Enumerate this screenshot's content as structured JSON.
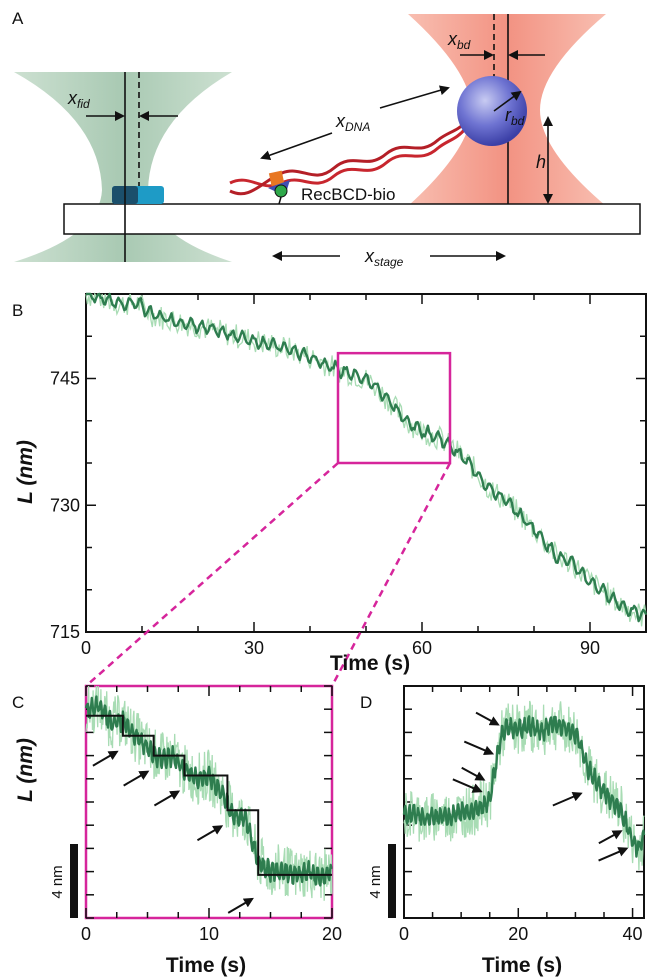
{
  "panel_labels": {
    "a": "A",
    "b": "B",
    "c": "C",
    "d": "D"
  },
  "schematic": {
    "x_fid": "x",
    "x_fid_sub": "fid",
    "x_bd": "x",
    "x_bd_sub": "bd",
    "x_dna": "x",
    "x_dna_sub": "DNA",
    "r_bd": "r",
    "r_bd_sub": "bd",
    "h": "h",
    "recbcd": "RecBCD-bio",
    "x_stage": "x",
    "x_stage_sub": "stage"
  },
  "colors": {
    "trace_light": "#a8dcb4",
    "trace_dark": "#2e7d4f",
    "magenta": "#d6259b",
    "green_beam": "#b6d2c0",
    "red_beam": "#f4a896",
    "bead": "#5a5fc8",
    "dna": "#c8262e"
  },
  "chart_data": [
    {
      "type": "line",
      "panel": "B",
      "xlabel": "Time (s)",
      "ylabel": "L (nm)",
      "xlim": [
        0,
        100
      ],
      "ylim": [
        715,
        755
      ],
      "xticks": [
        0,
        30,
        60,
        90
      ],
      "yticks": [
        715,
        730,
        745
      ],
      "series": [
        {
          "values_x": [
            0,
            3,
            6,
            9,
            12,
            15,
            18,
            21,
            24,
            27,
            30,
            33,
            36,
            39,
            42,
            45,
            48,
            51,
            54,
            57,
            60,
            63,
            66,
            69,
            72,
            75,
            78,
            81,
            84,
            87,
            90,
            93,
            96,
            99
          ],
          "values_y": [
            755,
            754.5,
            753.8,
            754,
            752.5,
            752,
            751.5,
            751,
            750.5,
            750,
            749.5,
            749,
            748.5,
            747.8,
            747,
            746,
            745.5,
            744.5,
            742.5,
            740,
            738.8,
            738,
            736.5,
            734.5,
            732,
            730.5,
            728.5,
            726.5,
            724,
            723,
            721,
            719.5,
            718,
            717
          ]
        }
      ],
      "zoom_box": {
        "x": [
          45,
          65
        ],
        "y": [
          735,
          748
        ]
      }
    },
    {
      "type": "line",
      "panel": "C",
      "xlabel": "Time (s)",
      "ylabel": "L (nm)",
      "xlim": [
        0,
        20
      ],
      "xticks": [
        0,
        10,
        20
      ],
      "scale_bar": "4 nm",
      "series": [
        {
          "values_x": [
            0,
            1,
            2,
            3,
            4,
            5,
            6,
            7,
            8,
            9,
            10,
            11,
            12,
            13,
            14,
            15,
            16,
            17,
            18,
            19,
            20
          ],
          "values_y": [
            20.5,
            20.8,
            19.8,
            19.9,
            19,
            18.3,
            17.6,
            17.8,
            16.9,
            16.4,
            16.6,
            15.6,
            14.2,
            14.0,
            11.4,
            10.8,
            10.9,
            10.6,
            10.8,
            10.5,
            10.7
          ]
        }
      ],
      "steps": {
        "x": [
          0,
          3,
          5.5,
          8,
          11.5,
          14,
          20
        ],
        "y": [
          20.2,
          19.0,
          17.8,
          16.6,
          14.5,
          10.6,
          10.6
        ]
      },
      "arrows_count": 5
    },
    {
      "type": "line",
      "panel": "D",
      "xlabel": "Time (s)",
      "xlim": [
        0,
        42
      ],
      "xticks": [
        0,
        20,
        40
      ],
      "scale_bar": "4 nm",
      "series": [
        {
          "values_x": [
            0,
            2,
            4,
            6,
            8,
            10,
            12,
            14,
            15,
            16,
            17,
            18,
            20,
            22,
            24,
            26,
            28,
            30,
            31,
            32,
            34,
            36,
            38,
            39,
            40,
            41,
            42
          ],
          "values_y": [
            15,
            15.2,
            14.8,
            15.1,
            15.0,
            15.3,
            15.4,
            15.8,
            16.2,
            18.5,
            20.5,
            21.2,
            21.0,
            21.3,
            20.8,
            21.4,
            21.1,
            20.7,
            19.8,
            18.4,
            17.2,
            16.2,
            15.4,
            14.4,
            13.2,
            12.8,
            13.6
          ]
        }
      ],
      "arrows_count": 7
    }
  ]
}
